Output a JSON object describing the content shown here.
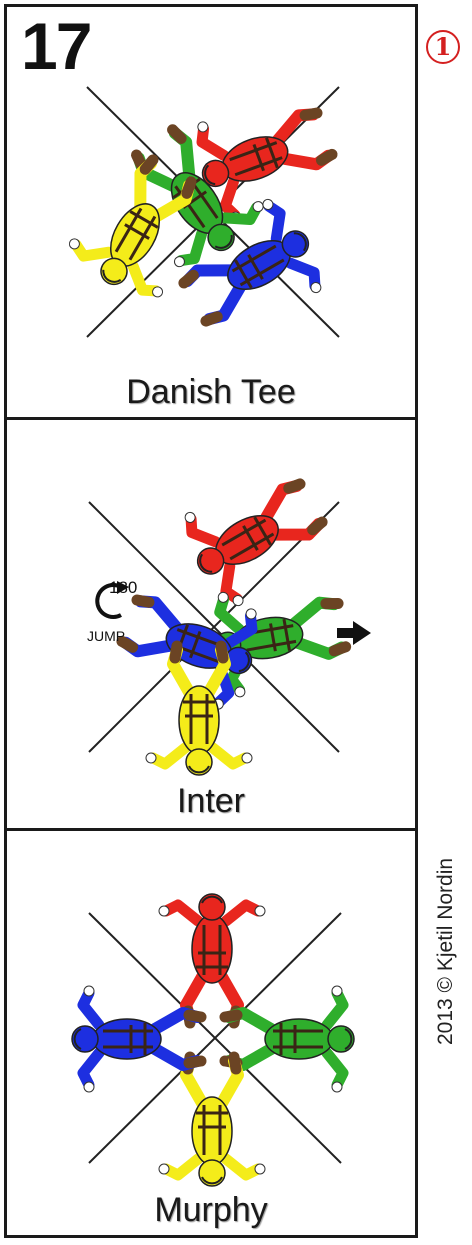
{
  "page_number": "17",
  "marker": "1",
  "copyright": "2013 © Kjetil Nordin",
  "formations": [
    {
      "name": "Danish Tee"
    },
    {
      "name": "Inter",
      "jump_degrees": "180",
      "jump_label": "JUMP"
    },
    {
      "name": "Murphy"
    }
  ],
  "colors": {
    "red": "#e8261e",
    "green": "#2fae2c",
    "blue": "#1d2fe0",
    "yellow": "#f4ec1a",
    "harness": "#3a2415",
    "limb": "#6b4424",
    "hand": "#ffffff"
  },
  "icons": [
    "arrow-right-icon",
    "rotate-180-icon",
    "jumper-figure-icon"
  ]
}
